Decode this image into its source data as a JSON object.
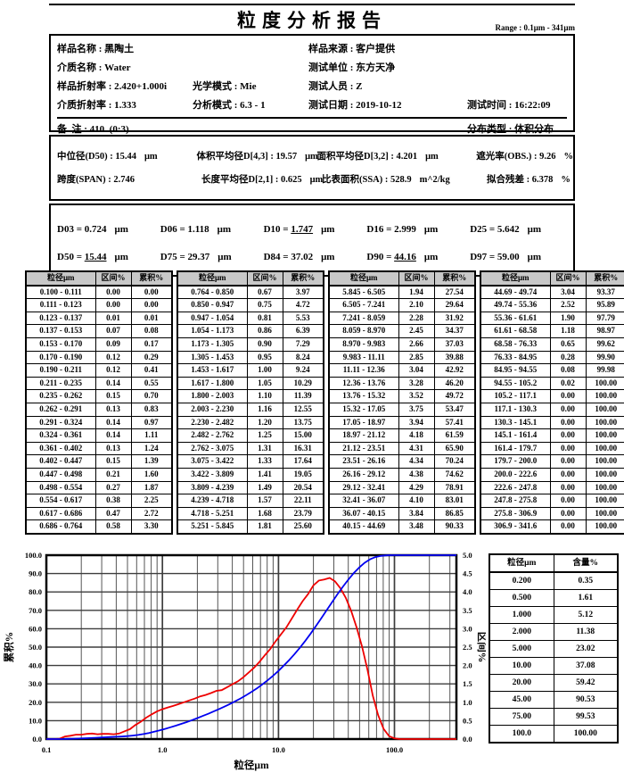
{
  "sep": " : ",
  "report": {
    "title": "粒度分析报告",
    "range_label": "Range : 0.1μm - 341μm"
  },
  "info": {
    "sample_name": {
      "label": "样品名称",
      "value": "黑陶土"
    },
    "source": {
      "label": "样品来源",
      "value": "客户提供"
    },
    "medium": {
      "label": "介质名称",
      "value": "Water"
    },
    "test_unit": {
      "label": "测试单位",
      "value": "东方天净"
    },
    "sample_ri": {
      "label": "样品折射率",
      "value": "2.420+1.000i"
    },
    "optical_mode": {
      "label": "光学模式",
      "value": "Mie"
    },
    "operator": {
      "label": "测试人员",
      "value": "Z"
    },
    "medium_ri": {
      "label": "介质折射率",
      "value": "1.333"
    },
    "analysis_mode": {
      "label": "分析模式",
      "value": "6.3 - 1"
    },
    "test_date": {
      "label": "测试日期",
      "value": "2019-10-12"
    },
    "test_time": {
      "label": "测试时间",
      "value": "16:22:09"
    },
    "remark": {
      "label": "备  注",
      "value": "410  (0:3)"
    },
    "dist_type": {
      "label": "分布类型",
      "value": "体积分布"
    }
  },
  "summary": {
    "row1": [
      {
        "key": "d50",
        "label": "中位径(D50)",
        "value": "15.44",
        "unit": "μm"
      },
      {
        "key": "d43",
        "label": "体积平均径D[4,3]",
        "value": "19.57",
        "unit": "μm"
      },
      {
        "key": "d32",
        "label": "面积平均径D[3,2]",
        "value": "4.201",
        "unit": "μm"
      },
      {
        "key": "obs",
        "label": "遮光率(OBS.)",
        "value": "9.26",
        "unit": "%"
      }
    ],
    "row2": [
      {
        "key": "span",
        "label": "跨度(SPAN)",
        "value": "2.746",
        "unit": ""
      },
      {
        "key": "d21",
        "label": "长度平均径D[2,1]",
        "value": "0.625",
        "unit": "μm"
      },
      {
        "key": "ssa",
        "label": "比表面积(SSA)",
        "value": "528.9",
        "unit": "m^2/kg"
      },
      {
        "key": "residual",
        "label": "拟合残差",
        "value": "6.378",
        "unit": "%"
      }
    ]
  },
  "d_values": {
    "unit": "μm",
    "items": [
      {
        "label": "D03",
        "value": "0.724",
        "underline": false
      },
      {
        "label": "D06",
        "value": "1.118",
        "underline": false
      },
      {
        "label": "D10",
        "value": "1.747",
        "underline": true
      },
      {
        "label": "D16",
        "value": "2.999",
        "underline": false
      },
      {
        "label": "D25",
        "value": "5.642",
        "underline": false
      },
      {
        "label": "D50",
        "value": "15.44",
        "underline": true
      },
      {
        "label": "D75",
        "value": "29.37",
        "underline": false
      },
      {
        "label": "D84",
        "value": "37.02",
        "underline": false
      },
      {
        "label": "D90",
        "value": "44.16",
        "underline": true
      },
      {
        "label": "D97",
        "value": "59.00",
        "underline": false
      }
    ]
  },
  "distribution_table": {
    "headers": [
      "粒径μm",
      "区间%",
      "累积%"
    ]
  },
  "content_table": {
    "headers": [
      "粒径μm",
      "含量%"
    ],
    "rows": [
      [
        "0.200",
        "0.35"
      ],
      [
        "0.500",
        "1.61"
      ],
      [
        "1.000",
        "5.12"
      ],
      [
        "2.000",
        "11.38"
      ],
      [
        "5.000",
        "23.02"
      ],
      [
        "10.00",
        "37.08"
      ],
      [
        "20.00",
        "59.42"
      ],
      [
        "45.00",
        "90.53"
      ],
      [
        "75.00",
        "99.53"
      ],
      [
        "100.0",
        "100.00"
      ]
    ]
  },
  "chart_data": {
    "type": "line",
    "xlabel": "粒径μm",
    "ylabel_left": "累积%",
    "ylabel_right": "区间%",
    "x_scale": "log",
    "x_range": [
      0.1,
      341.6
    ],
    "x_ticks": [
      0.1,
      1.0,
      10.0,
      100.0
    ],
    "x_tick_labels": [
      "0.1",
      "1.0",
      "10.0",
      "100.0"
    ],
    "left_ylim": [
      0,
      100
    ],
    "left_tick_step": 10,
    "right_ylim": [
      0,
      5
    ],
    "right_tick_step": 0.5,
    "grid": true,
    "series": [
      {
        "name": "累积%",
        "axis": "left",
        "color": "#0000f0"
      },
      {
        "name": "区间%",
        "axis": "right",
        "color": "#ee0000"
      }
    ],
    "bins": [
      [
        "0.100 - 0.111",
        0.0,
        0.0
      ],
      [
        "0.111 - 0.123",
        0.0,
        0.0
      ],
      [
        "0.123 - 0.137",
        0.01,
        0.01
      ],
      [
        "0.137 - 0.153",
        0.07,
        0.08
      ],
      [
        "0.153 - 0.170",
        0.09,
        0.17
      ],
      [
        "0.170 - 0.190",
        0.12,
        0.29
      ],
      [
        "0.190 - 0.211",
        0.12,
        0.41
      ],
      [
        "0.211 - 0.235",
        0.14,
        0.55
      ],
      [
        "0.235 - 0.262",
        0.15,
        0.7
      ],
      [
        "0.262 - 0.291",
        0.13,
        0.83
      ],
      [
        "0.291 - 0.324",
        0.14,
        0.97
      ],
      [
        "0.324 - 0.361",
        0.14,
        1.11
      ],
      [
        "0.361 - 0.402",
        0.13,
        1.24
      ],
      [
        "0.402 - 0.447",
        0.15,
        1.39
      ],
      [
        "0.447 - 0.498",
        0.21,
        1.6
      ],
      [
        "0.498 - 0.554",
        0.27,
        1.87
      ],
      [
        "0.554 - 0.617",
        0.38,
        2.25
      ],
      [
        "0.617 - 0.686",
        0.47,
        2.72
      ],
      [
        "0.686 - 0.764",
        0.58,
        3.3
      ],
      [
        "0.764 - 0.850",
        0.67,
        3.97
      ],
      [
        "0.850 - 0.947",
        0.75,
        4.72
      ],
      [
        "0.947 - 1.054",
        0.81,
        5.53
      ],
      [
        "1.054 - 1.173",
        0.86,
        6.39
      ],
      [
        "1.173 - 1.305",
        0.9,
        7.29
      ],
      [
        "1.305 - 1.453",
        0.95,
        8.24
      ],
      [
        "1.453 - 1.617",
        1.0,
        9.24
      ],
      [
        "1.617 - 1.800",
        1.05,
        10.29
      ],
      [
        "1.800 - 2.003",
        1.1,
        11.39
      ],
      [
        "2.003 - 2.230",
        1.16,
        12.55
      ],
      [
        "2.230 - 2.482",
        1.2,
        13.75
      ],
      [
        "2.482 - 2.762",
        1.25,
        15.0
      ],
      [
        "2.762 - 3.075",
        1.31,
        16.31
      ],
      [
        "3.075 - 3.422",
        1.33,
        17.64
      ],
      [
        "3.422 - 3.809",
        1.41,
        19.05
      ],
      [
        "3.809 - 4.239",
        1.49,
        20.54
      ],
      [
        "4.239 - 4.718",
        1.57,
        22.11
      ],
      [
        "4.718 - 5.251",
        1.68,
        23.79
      ],
      [
        "5.251 - 5.845",
        1.81,
        25.6
      ],
      [
        "5.845 - 6.505",
        1.94,
        27.54
      ],
      [
        "6.505 - 7.241",
        2.1,
        29.64
      ],
      [
        "7.241 - 8.059",
        2.28,
        31.92
      ],
      [
        "8.059 - 8.970",
        2.45,
        34.37
      ],
      [
        "8.970 - 9.983",
        2.66,
        37.03
      ],
      [
        "9.983 - 11.11",
        2.85,
        39.88
      ],
      [
        "11.11 - 12.36",
        3.04,
        42.92
      ],
      [
        "12.36 - 13.76",
        3.28,
        46.2
      ],
      [
        "13.76 - 15.32",
        3.52,
        49.72
      ],
      [
        "15.32 - 17.05",
        3.75,
        53.47
      ],
      [
        "17.05 - 18.97",
        3.94,
        57.41
      ],
      [
        "18.97 - 21.12",
        4.18,
        61.59
      ],
      [
        "21.12 - 23.51",
        4.31,
        65.9
      ],
      [
        "23.51 - 26.16",
        4.34,
        70.24
      ],
      [
        "26.16 - 29.12",
        4.38,
        74.62
      ],
      [
        "29.12 - 32.41",
        4.29,
        78.91
      ],
      [
        "32.41 - 36.07",
        4.1,
        83.01
      ],
      [
        "36.07 - 40.15",
        3.84,
        86.85
      ],
      [
        "40.15 - 44.69",
        3.48,
        90.33
      ],
      [
        "44.69 - 49.74",
        3.04,
        93.37
      ],
      [
        "49.74 - 55.36",
        2.52,
        95.89
      ],
      [
        "55.36 - 61.61",
        1.9,
        97.79
      ],
      [
        "61.61 - 68.58",
        1.18,
        98.97
      ],
      [
        "68.58 - 76.33",
        0.65,
        99.62
      ],
      [
        "76.33 - 84.95",
        0.28,
        99.9
      ],
      [
        "84.95 - 94.55",
        0.08,
        99.98
      ],
      [
        "94.55 - 105.2",
        0.02,
        100.0
      ],
      [
        "105.2 - 117.1",
        0.0,
        100.0
      ],
      [
        "117.1 - 130.3",
        0.0,
        100.0
      ],
      [
        "130.3 - 145.1",
        0.0,
        100.0
      ],
      [
        "145.1 - 161.4",
        0.0,
        100.0
      ],
      [
        "161.4 - 179.7",
        0.0,
        100.0
      ],
      [
        "179.7 - 200.0",
        0.0,
        100.0
      ],
      [
        "200.0 - 222.6",
        0.0,
        100.0
      ],
      [
        "222.6 - 247.8",
        0.0,
        100.0
      ],
      [
        "247.8 - 275.8",
        0.0,
        100.0
      ],
      [
        "275.8 - 306.9",
        0.0,
        100.0
      ],
      [
        "306.9 - 341.6",
        0.0,
        100.0
      ]
    ]
  }
}
